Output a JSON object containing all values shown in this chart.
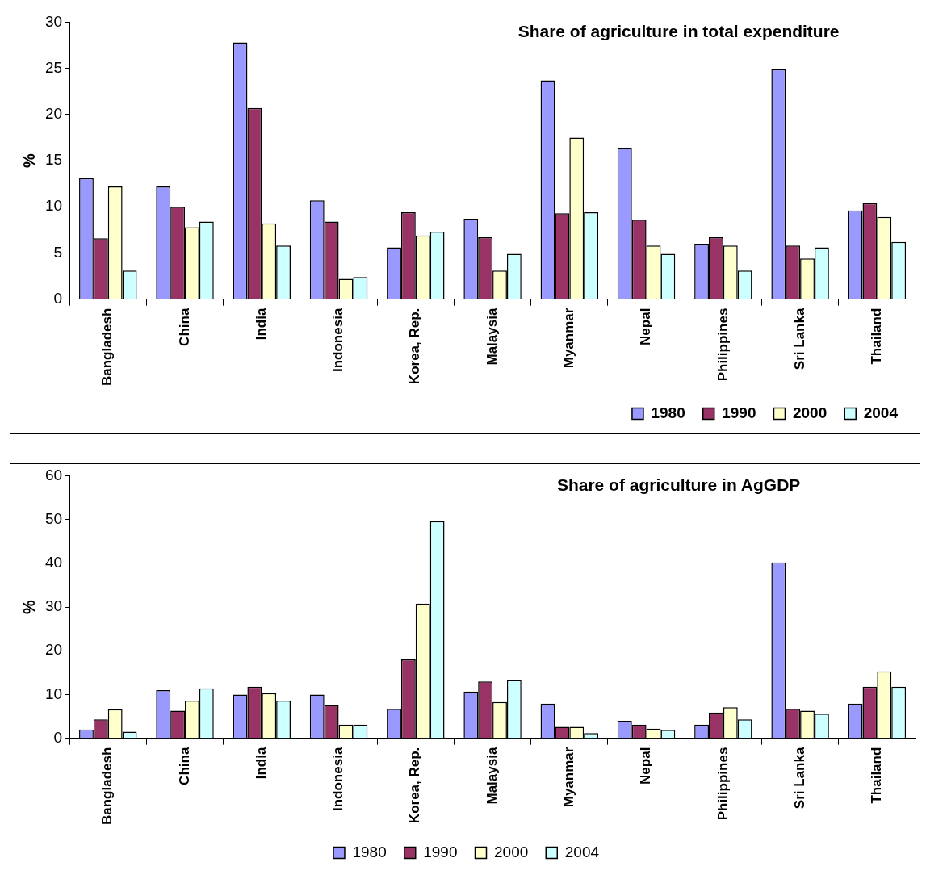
{
  "chart_data": [
    {
      "type": "bar",
      "title": "Share of agriculture in total expenditure",
      "ylabel": "%",
      "categories": [
        "Bangladesh",
        "China",
        "India",
        "Indonesia",
        "Korea, Rep.",
        "Malaysia",
        "Myanmar",
        "Nepal",
        "Philippines",
        "Sri Lanka",
        "Thailand"
      ],
      "series": [
        {
          "name": "1980",
          "color": "#9999ff",
          "values": [
            13.1,
            12.2,
            27.8,
            10.7,
            5.6,
            8.7,
            23.7,
            16.4,
            6.0,
            24.9,
            9.6
          ]
        },
        {
          "name": "1990",
          "color": "#993366",
          "values": [
            6.6,
            10.0,
            20.7,
            8.4,
            9.4,
            6.7,
            9.3,
            8.6,
            6.7,
            5.8,
            10.4
          ]
        },
        {
          "name": "2000",
          "color": "#ffffcc",
          "values": [
            12.2,
            7.8,
            8.2,
            2.2,
            6.9,
            3.1,
            17.5,
            5.8,
            5.8,
            4.4,
            8.9
          ]
        },
        {
          "name": "2004",
          "color": "#ccffff",
          "values": [
            3.1,
            8.4,
            5.8,
            2.4,
            7.3,
            4.9,
            9.4,
            4.9,
            3.1,
            5.6,
            6.2
          ]
        }
      ],
      "ylim": [
        0,
        30
      ],
      "yticks": [
        0,
        5,
        10,
        15,
        20,
        25,
        30
      ],
      "grid": false,
      "legend": "bottom right"
    },
    {
      "type": "bar",
      "title": "Share of agriculture in AgGDP",
      "ylabel": "%",
      "categories": [
        "Bangladesh",
        "China",
        "India",
        "Indonesia",
        "Korea, Rep.",
        "Malaysia",
        "Myanmar",
        "Nepal",
        "Philippines",
        "Sri Lanka",
        "Thailand"
      ],
      "series": [
        {
          "name": "1980",
          "color": "#9999ff",
          "values": [
            2,
            11,
            10,
            10,
            6.7,
            10.7,
            7.9,
            4,
            3.1,
            40.2,
            7.9
          ]
        },
        {
          "name": "1990",
          "color": "#993366",
          "values": [
            4.3,
            6.3,
            11.8,
            7.6,
            18,
            13,
            2.6,
            3.1,
            5.9,
            6.7,
            11.8
          ]
        },
        {
          "name": "2000",
          "color": "#ffffcc",
          "values": [
            6.6,
            8.6,
            10.3,
            3.1,
            30.8,
            8.3,
            2.6,
            2.2,
            7.1,
            6.3,
            15.3
          ]
        },
        {
          "name": "2004",
          "color": "#ccffff",
          "values": [
            1.5,
            11.4,
            8.6,
            3.1,
            49.6,
            13.3,
            1.2,
            1.9,
            4.3,
            5.6,
            11.8
          ]
        }
      ],
      "ylim": [
        0,
        60
      ],
      "yticks": [
        0,
        10,
        20,
        30,
        40,
        50,
        60
      ],
      "grid": false,
      "legend": "bottom"
    }
  ]
}
